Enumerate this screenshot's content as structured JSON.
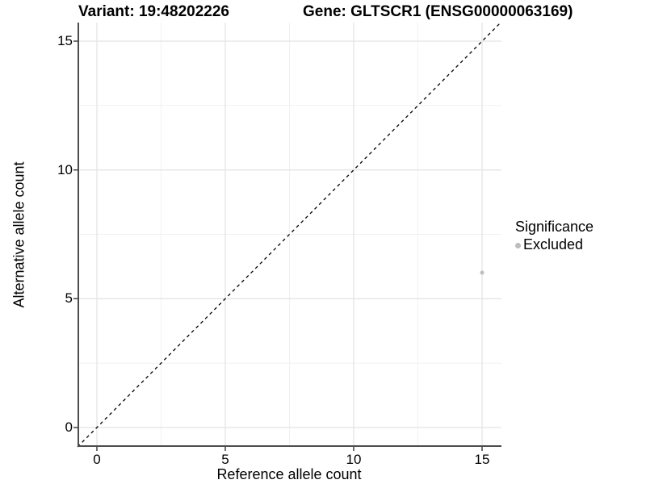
{
  "titles": {
    "variant": "Variant: 19:48202226",
    "gene": "Gene: GLTSCR1 (ENSG00000063169)"
  },
  "legend": {
    "title": "Significance",
    "items": [
      {
        "label": "Excluded",
        "color": "#bdbdbd"
      }
    ]
  },
  "chart_data": {
    "type": "scatter",
    "title_left": "Variant: 19:48202226",
    "title_right": "Gene: GLTSCR1 (ENSG00000063169)",
    "xlabel": "Reference allele count",
    "ylabel": "Alternative allele count",
    "xlim": [
      0,
      15
    ],
    "ylim": [
      0,
      15
    ],
    "x_ticks": [
      0,
      5,
      10,
      15
    ],
    "y_ticks": [
      0,
      5,
      10,
      15
    ],
    "grid": "major and minor, light gray on white",
    "legend_position": "right-center",
    "series": [
      {
        "name": "Excluded",
        "color": "#bdbdbd",
        "points": [
          {
            "x": 15,
            "y": 6
          }
        ]
      }
    ],
    "reference_line": {
      "type": "identity y=x",
      "style": "dashed",
      "color": "#000000"
    }
  },
  "colors": {
    "axis_line": "#4d4d4d",
    "tick_mark": "#333333",
    "grid_major": "#e4e4e4",
    "grid_minor": "#f1f1f1",
    "point": "#bdbdbd",
    "background": "#ffffff"
  }
}
